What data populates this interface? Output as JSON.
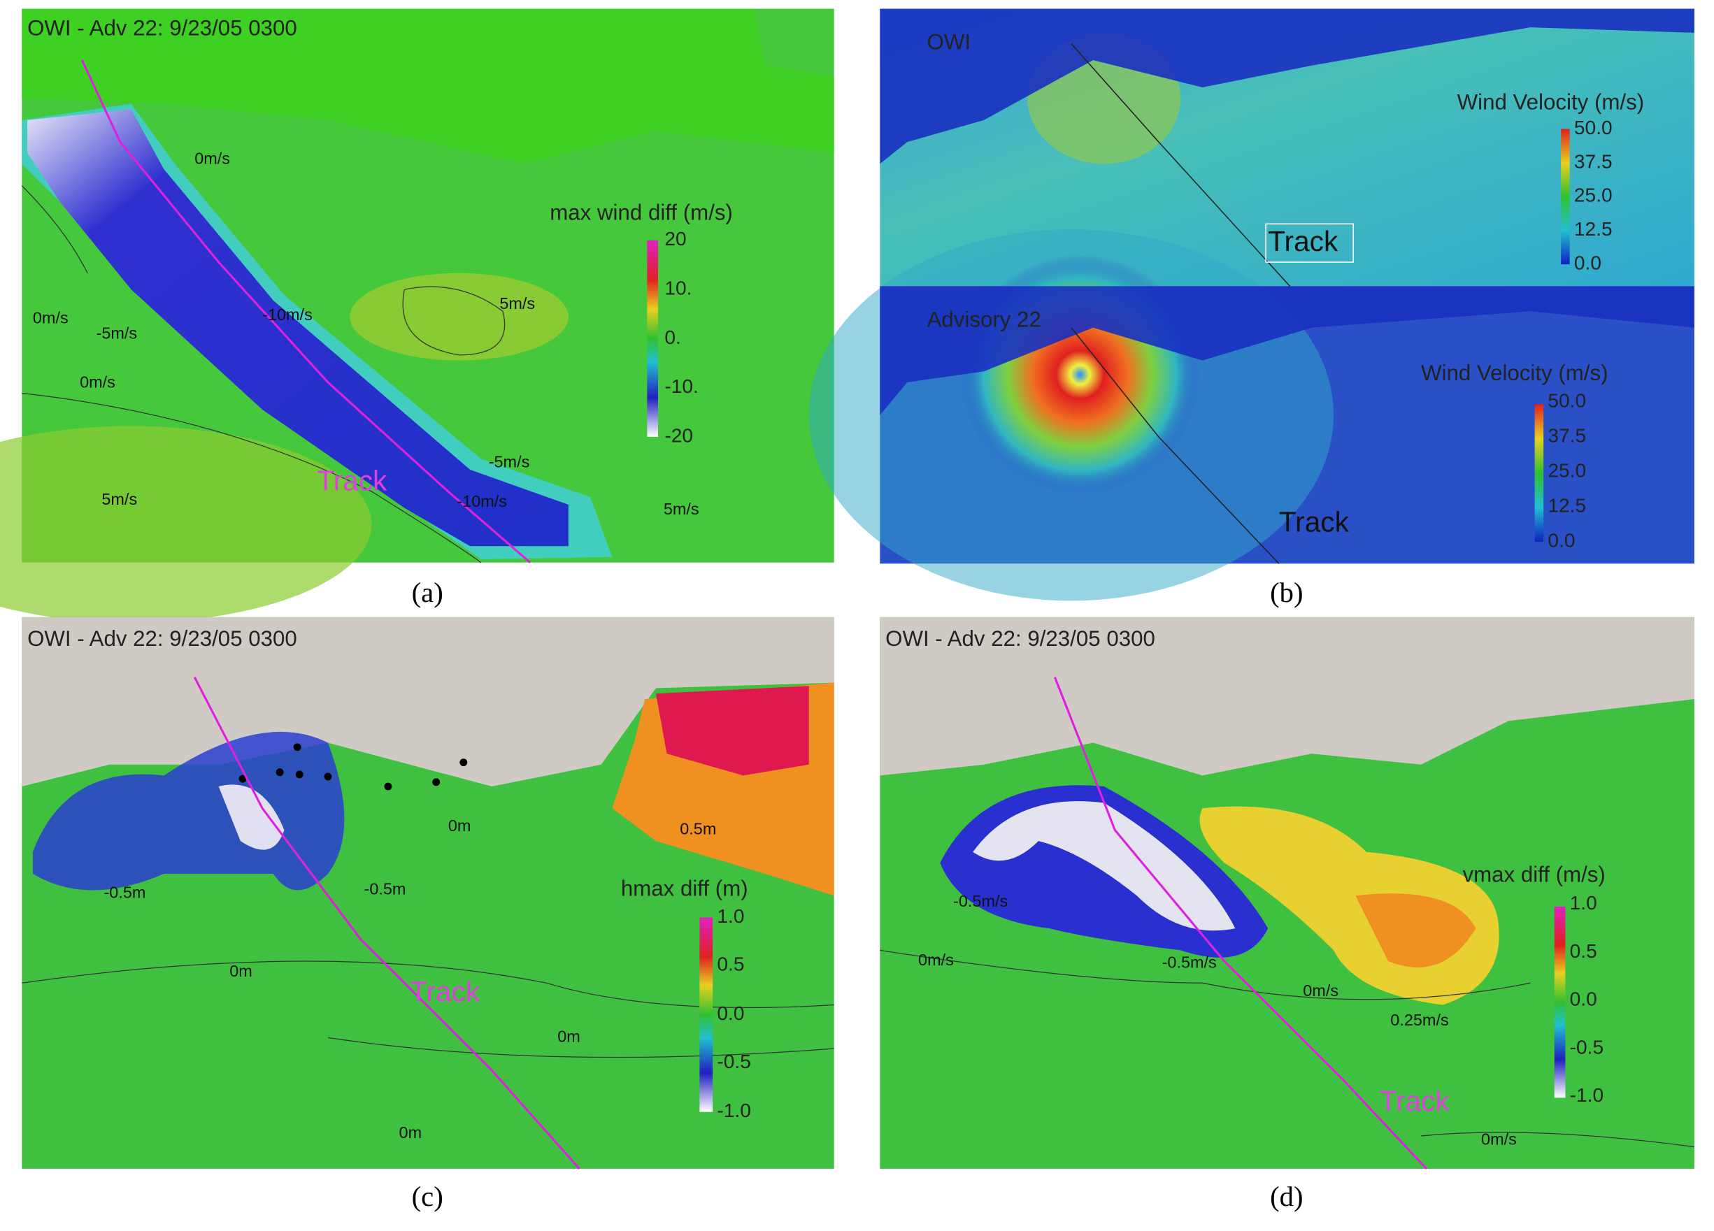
{
  "panels": [
    {
      "title": "OWI - Adv 22: 9/23/05 0300",
      "colorbar": {
        "title": "max wind diff (m/s)",
        "ticks": [
          "20",
          "10.",
          "0.",
          "-10.",
          "-20"
        ]
      },
      "labels": [
        "0m/s",
        "-10m/s",
        "5m/s",
        "0m/s",
        "-5m/s",
        "0m/s",
        "-5m/s",
        "-10m/s",
        "5m/s",
        "5m/s"
      ],
      "track": "Track",
      "caption": "(a)"
    },
    {
      "maps": [
        {
          "title": "OWI",
          "colorbar": {
            "title": "Wind Velocity (m/s)",
            "ticks": [
              "50.0",
              "37.5",
              "25.0",
              "12.5",
              "0.0"
            ]
          },
          "track": "Track"
        },
        {
          "title": "Advisory 22",
          "colorbar": {
            "title": "Wind Velocity (m/s)",
            "ticks": [
              "50.0",
              "37.5",
              "25.0",
              "12.5",
              "0.0"
            ]
          },
          "track": "Track"
        }
      ],
      "caption": "(b)"
    },
    {
      "title": "OWI - Adv 22: 9/23/05 0300",
      "colorbar": {
        "title": "hmax diff (m)",
        "ticks": [
          "1.0",
          "0.5",
          "0.0",
          "-0.5",
          "-1.0"
        ]
      },
      "labels": [
        "0m",
        "0.5m",
        "-0.5m",
        "-0.5m",
        "0m",
        "0m",
        "0m"
      ],
      "track": "Track",
      "caption": "(c)"
    },
    {
      "title": "OWI - Adv 22: 9/23/05 0300",
      "colorbar": {
        "title": "vmax diff (m/s)",
        "ticks": [
          "1.0",
          "0.5",
          "0.0",
          "-0.5",
          "-1.0"
        ]
      },
      "labels": [
        "-0.5m/s",
        "0m/s",
        "-0.5m/s",
        "0m/s",
        "0.25m/s",
        "0m/s"
      ],
      "track": "Track",
      "caption": "(d)"
    }
  ]
}
